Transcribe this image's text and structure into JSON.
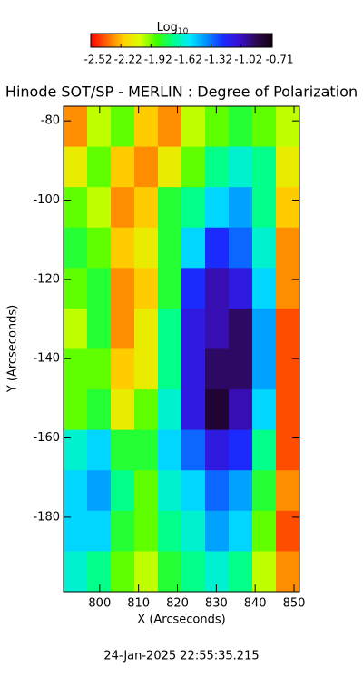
{
  "chart_data": {
    "type": "heatmap",
    "title": "Hinode SOT/SP - MERLIN : Degree of Polarization",
    "colorbar_label": "Log",
    "colorbar_label_sub": "10",
    "x_label": "X (Arcseconds)",
    "y_label": "Y (Arcseconds)",
    "footer": "24-Jan-2025 22:55:35.215",
    "xlim": [
      790.7,
      851.4
    ],
    "ylim": [
      -198.8,
      -76.3
    ],
    "xticks": [
      800,
      810,
      820,
      830,
      840,
      850
    ],
    "yticks": [
      -80,
      -100,
      -120,
      -140,
      -160,
      -180
    ],
    "clim": [
      -2.52,
      -0.71
    ],
    "cticks": [
      -2.52,
      -2.22,
      -1.92,
      -1.62,
      -1.32,
      -1.02,
      -0.71
    ],
    "colormap": [
      "#ff0000",
      "#ff6a00",
      "#ffd200",
      "#d8ff00",
      "#3cff00",
      "#00ff8c",
      "#00e8ff",
      "#0090ff",
      "#1a2cff",
      "#3a10d0",
      "#2c0850",
      "#140010"
    ],
    "z": [
      [
        -2.3,
        -2.0,
        -1.9,
        -2.2,
        -2.3,
        -2.0,
        -1.9,
        -1.8,
        -1.9,
        -2.0
      ],
      [
        -2.1,
        -1.9,
        -2.2,
        -2.3,
        -2.1,
        -1.9,
        -1.7,
        -1.6,
        -1.7,
        -2.1
      ],
      [
        -1.9,
        -2.0,
        -2.3,
        -2.2,
        -1.8,
        -1.7,
        -1.5,
        -1.4,
        -1.7,
        -2.2
      ],
      [
        -1.8,
        -1.9,
        -2.2,
        -2.1,
        -1.8,
        -1.5,
        -1.2,
        -1.3,
        -1.6,
        -2.3
      ],
      [
        -1.9,
        -1.8,
        -2.3,
        -2.2,
        -1.8,
        -1.2,
        -1.0,
        -1.1,
        -1.5,
        -2.3
      ],
      [
        -2.0,
        -1.8,
        -2.3,
        -2.1,
        -1.7,
        -1.1,
        -1.0,
        -0.9,
        -1.4,
        -2.4
      ],
      [
        -1.9,
        -1.9,
        -2.2,
        -2.1,
        -1.7,
        -1.1,
        -0.9,
        -0.9,
        -1.4,
        -2.4
      ],
      [
        -1.9,
        -1.8,
        -2.1,
        -1.9,
        -1.6,
        -1.1,
        -0.8,
        -1.0,
        -1.5,
        -2.4
      ],
      [
        -1.6,
        -1.5,
        -1.8,
        -1.8,
        -1.5,
        -1.3,
        -1.1,
        -1.2,
        -1.7,
        -2.4
      ],
      [
        -1.5,
        -1.4,
        -1.7,
        -1.9,
        -1.6,
        -1.5,
        -1.3,
        -1.4,
        -1.8,
        -2.3
      ],
      [
        -1.5,
        -1.5,
        -1.8,
        -1.9,
        -1.7,
        -1.6,
        -1.4,
        -1.5,
        -1.9,
        -2.4
      ],
      [
        -1.6,
        -1.7,
        -1.9,
        -2.0,
        -1.8,
        -1.7,
        -1.6,
        -1.7,
        -2.0,
        -2.3
      ]
    ]
  }
}
